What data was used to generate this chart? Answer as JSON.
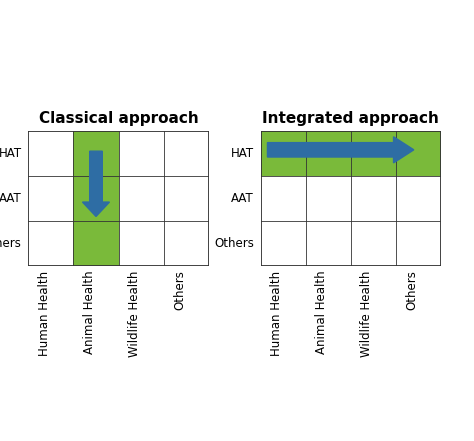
{
  "title_left": "Classical approach",
  "title_right": "Integrated approach",
  "col_labels": [
    "Human Health",
    "Animal Health",
    "Wildlife Health",
    "Others"
  ],
  "row_labels_bottom_to_top": [
    "Others",
    "AAT",
    "HAT"
  ],
  "green_color": "#7aba3a",
  "arrow_color": "#2e6da4",
  "grid_line_color": "#333333",
  "bg_color": "#ffffff",
  "title_fontsize": 11,
  "label_fontsize": 8.5
}
